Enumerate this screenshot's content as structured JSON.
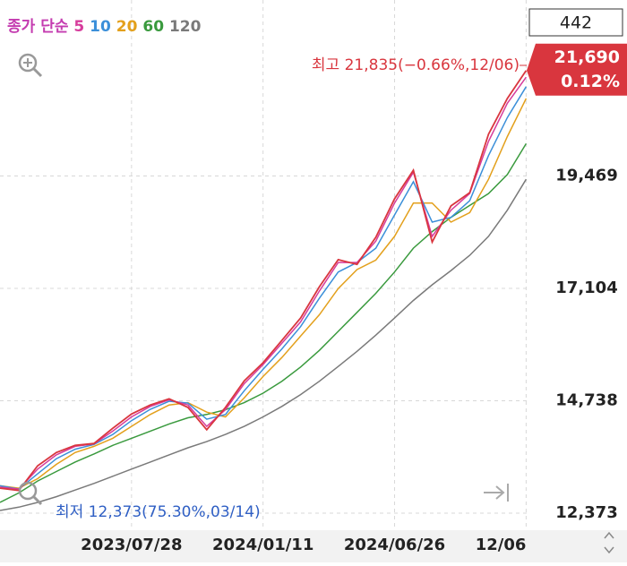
{
  "chart_data": {
    "type": "line",
    "legend_title": "종가 단순",
    "x": [
      0,
      16,
      32,
      48,
      64,
      80,
      96,
      112,
      128,
      144,
      160,
      176,
      192,
      208,
      224,
      240,
      256,
      272,
      288,
      304,
      320,
      336,
      352,
      368,
      384,
      400,
      416,
      432,
      448
    ],
    "xlim": [
      0,
      450
    ],
    "xticks": [
      {
        "value": 112,
        "label": "2023/07/28"
      },
      {
        "value": 224,
        "label": "2024/01/11"
      },
      {
        "value": 336,
        "label": "2024/06/26"
      },
      {
        "value": 448,
        "label": "12/06"
      }
    ],
    "ylim": [
      12053,
      23174
    ],
    "yticks": [
      {
        "value": 12373,
        "label": "12,373"
      },
      {
        "value": 14738,
        "label": "14,738"
      },
      {
        "value": 17104,
        "label": "17,104"
      },
      {
        "value": 19469,
        "label": "19,469"
      }
    ],
    "grid": true,
    "close_color": "#d9363e",
    "close": [
      12900,
      12850,
      13370,
      13650,
      13800,
      13840,
      14160,
      14460,
      14650,
      14780,
      14600,
      14130,
      14600,
      15160,
      15540,
      16010,
      16480,
      17140,
      17710,
      17610,
      18180,
      18990,
      19590,
      18080,
      18840,
      19120,
      20350,
      21100,
      21690
    ],
    "series": [
      {
        "name": "5",
        "color": "#d63c9c",
        "values": [
          12920,
          12880,
          13300,
          13600,
          13780,
          13830,
          14100,
          14400,
          14620,
          14760,
          14650,
          14200,
          14550,
          15100,
          15500,
          15950,
          16400,
          17050,
          17650,
          17650,
          18100,
          18900,
          19550,
          18200,
          18750,
          19100,
          20200,
          21000,
          21550
        ]
      },
      {
        "name": "10",
        "color": "#3b8fd9",
        "values": [
          12950,
          12880,
          13200,
          13520,
          13720,
          13820,
          14030,
          14320,
          14560,
          14730,
          14690,
          14350,
          14450,
          14950,
          15400,
          15830,
          16300,
          16900,
          17450,
          17650,
          17950,
          18650,
          19350,
          18500,
          18600,
          18950,
          19900,
          20700,
          21350
        ]
      },
      {
        "name": "20",
        "color": "#e3a01c",
        "values": [
          12950,
          12900,
          13100,
          13400,
          13650,
          13780,
          13950,
          14200,
          14450,
          14650,
          14700,
          14500,
          14400,
          14800,
          15250,
          15650,
          16100,
          16550,
          17100,
          17500,
          17700,
          18200,
          18900,
          18900,
          18500,
          18700,
          19400,
          20300,
          21100
        ]
      },
      {
        "name": "60",
        "color": "#3a9a3e",
        "values": [
          12600,
          12800,
          13050,
          13250,
          13450,
          13620,
          13800,
          13950,
          14100,
          14250,
          14380,
          14450,
          14550,
          14700,
          14900,
          15150,
          15450,
          15800,
          16200,
          16600,
          17000,
          17450,
          17950,
          18300,
          18600,
          18850,
          19100,
          19500,
          20150
        ]
      },
      {
        "name": "120",
        "color": "#7a7a7a",
        "values": [
          12430,
          12500,
          12600,
          12720,
          12860,
          13000,
          13150,
          13300,
          13450,
          13600,
          13750,
          13880,
          14030,
          14200,
          14400,
          14620,
          14870,
          15150,
          15460,
          15780,
          16120,
          16480,
          16850,
          17180,
          17480,
          17800,
          18200,
          18750,
          19400
        ]
      }
    ],
    "count_box": "442",
    "high_annotation": "최고 21,835(−0.66%,12/06)",
    "low_annotation": "최저 12,373(75.30%,03/14)",
    "price_tag": {
      "value": 21690,
      "label": "21,690",
      "change": "0.12%"
    }
  }
}
